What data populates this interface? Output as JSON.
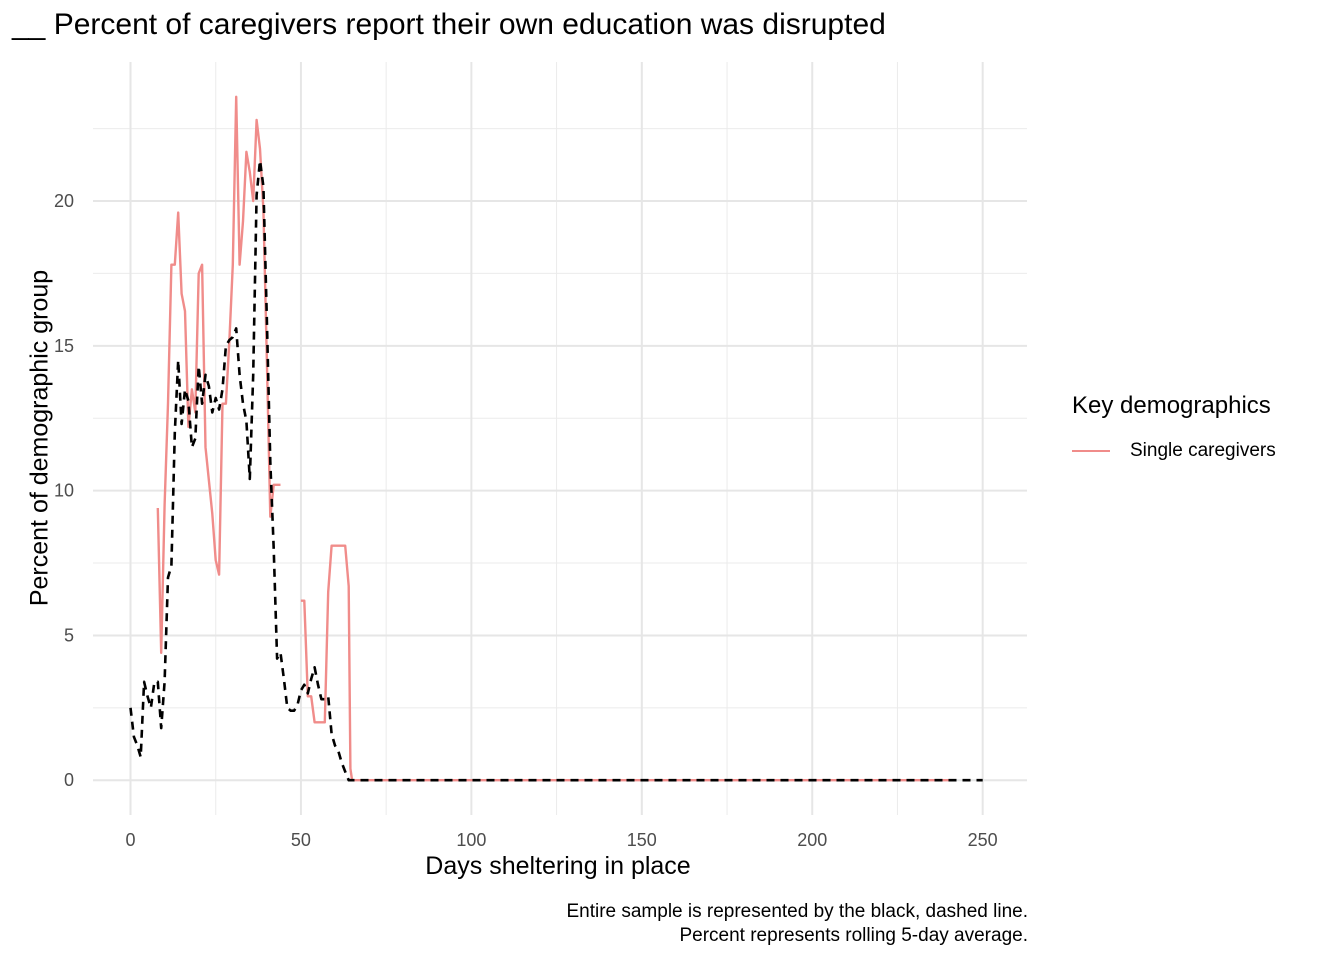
{
  "chart_data": {
    "type": "line",
    "title": "__ Percent of caregivers report their own education was disrupted",
    "xlabel": "Days sheltering in place",
    "ylabel": "Percent of demographic group",
    "xlim": [
      -11,
      263
    ],
    "ylim": [
      -1.2,
      24.8
    ],
    "x_ticks": [
      0,
      50,
      100,
      150,
      200,
      250
    ],
    "x_tick_labels": [
      "0",
      "50",
      "100",
      "150",
      "200",
      "250"
    ],
    "y_ticks": [
      0,
      5,
      10,
      15,
      20
    ],
    "y_tick_labels": [
      "0",
      "5",
      "10",
      "15",
      "20"
    ],
    "grid": true,
    "legend": {
      "title": "Key demographics",
      "position": "right",
      "items": [
        {
          "label": "Single caregivers",
          "color": "#f08c8a"
        }
      ]
    },
    "caption": [
      "Entire sample is represented by the black, dashed line.",
      "Percent represents rolling 5-day average."
    ],
    "series": [
      {
        "name": "Single caregivers",
        "color": "#f08c8a",
        "style": "solid",
        "segments": [
          [
            [
              8,
              9.4
            ],
            [
              9,
              4.4
            ],
            [
              10,
              9.5
            ],
            [
              11,
              13
            ],
            [
              12,
              17.8
            ],
            [
              13,
              17.8
            ],
            [
              14,
              19.6
            ],
            [
              15,
              16.8
            ],
            [
              16,
              16.2
            ],
            [
              17,
              12.2
            ],
            [
              18,
              13.5
            ],
            [
              19,
              12.7
            ],
            [
              20,
              17.5
            ],
            [
              21,
              17.8
            ],
            [
              22,
              11.5
            ],
            [
              24,
              9.2
            ],
            [
              25,
              7.6
            ],
            [
              26,
              7.1
            ],
            [
              27,
              13
            ],
            [
              28,
              13
            ],
            [
              29,
              15.2
            ],
            [
              30,
              17.8
            ],
            [
              31,
              23.6
            ],
            [
              32,
              17.8
            ],
            [
              33,
              19.3
            ],
            [
              34,
              21.7
            ],
            [
              35,
              21
            ],
            [
              36,
              20
            ],
            [
              37,
              22.8
            ],
            [
              38,
              21.8
            ],
            [
              39,
              19.7
            ],
            [
              40,
              14.6
            ],
            [
              41,
              9.1
            ],
            [
              42,
              10.2
            ],
            [
              44,
              10.2
            ]
          ],
          [
            [
              50,
              6.2
            ],
            [
              51,
              6.2
            ],
            [
              52,
              2.9
            ],
            [
              53,
              2.9
            ],
            [
              54,
              2
            ],
            [
              57,
              2
            ],
            [
              58,
              6.5
            ],
            [
              59,
              8.1
            ],
            [
              63,
              8.1
            ],
            [
              64,
              6.7
            ],
            [
              64.5,
              0.4
            ],
            [
              65,
              0
            ],
            [
              240,
              0
            ]
          ]
        ]
      },
      {
        "name": "Entire sample",
        "color": "#000000",
        "style": "dashed",
        "points": [
          [
            0,
            2.5
          ],
          [
            1,
            1.5
          ],
          [
            2,
            1.2
          ],
          [
            3,
            0.8
          ],
          [
            4,
            3.4
          ],
          [
            5,
            2.9
          ],
          [
            6,
            2.5
          ],
          [
            7,
            3.4
          ],
          [
            8,
            3.4
          ],
          [
            9,
            1.8
          ],
          [
            10,
            3.4
          ],
          [
            11,
            7
          ],
          [
            12,
            7.4
          ],
          [
            13,
            12
          ],
          [
            14,
            14.5
          ],
          [
            15,
            12.3
          ],
          [
            16,
            13.5
          ],
          [
            17,
            13.1
          ],
          [
            18,
            11.5
          ],
          [
            19,
            11.8
          ],
          [
            20,
            14.3
          ],
          [
            21,
            13
          ],
          [
            22,
            14
          ],
          [
            23,
            13.6
          ],
          [
            24,
            12.7
          ],
          [
            25,
            13.2
          ],
          [
            26,
            12.8
          ],
          [
            27,
            13.5
          ],
          [
            28,
            15
          ],
          [
            29,
            15.2
          ],
          [
            30,
            15.3
          ],
          [
            31,
            15.6
          ],
          [
            32,
            14
          ],
          [
            33,
            13
          ],
          [
            34,
            12.4
          ],
          [
            35,
            10.4
          ],
          [
            36,
            14
          ],
          [
            37,
            20.2
          ],
          [
            38,
            21.4
          ],
          [
            39,
            20.5
          ],
          [
            40,
            16
          ],
          [
            41,
            11
          ],
          [
            42,
            8
          ],
          [
            43,
            4.2
          ],
          [
            44,
            4.4
          ],
          [
            45,
            3.5
          ],
          [
            46,
            2.5
          ],
          [
            47,
            2.4
          ],
          [
            48,
            2.4
          ],
          [
            49,
            2.6
          ],
          [
            50,
            3.1
          ],
          [
            51,
            3.3
          ],
          [
            52,
            3
          ],
          [
            53,
            3.5
          ],
          [
            54,
            3.9
          ],
          [
            55,
            3.3
          ],
          [
            56,
            2.8
          ],
          [
            57,
            2.8
          ],
          [
            58,
            2.9
          ],
          [
            59,
            1.6
          ],
          [
            60,
            1.2
          ],
          [
            61,
            1
          ],
          [
            62,
            0.6
          ],
          [
            63,
            0.3
          ],
          [
            64,
            0
          ],
          [
            250,
            0
          ]
        ]
      }
    ]
  }
}
